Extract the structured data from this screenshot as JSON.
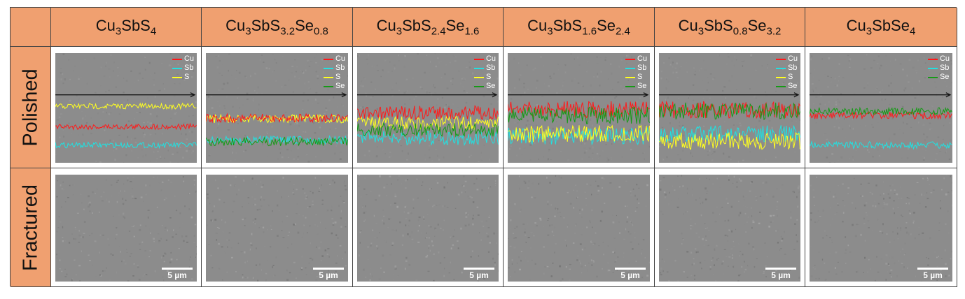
{
  "columns": [
    {
      "formula": "Cu3SbS4",
      "parts": [
        [
          "Cu",
          ""
        ],
        [
          "3",
          "sub"
        ],
        [
          "SbS",
          ""
        ],
        [
          "4",
          "sub"
        ]
      ],
      "legend": [
        "Cu",
        "Sb",
        "S"
      ]
    },
    {
      "formula": "Cu3SbS3.2Se0.8",
      "parts": [
        [
          "Cu",
          ""
        ],
        [
          "3",
          "sub"
        ],
        [
          "SbS",
          ""
        ],
        [
          "3.2",
          "sub"
        ],
        [
          "Se",
          ""
        ],
        [
          "0.8",
          "sub"
        ]
      ],
      "legend": [
        "Cu",
        "Sb",
        "S",
        "Se"
      ]
    },
    {
      "formula": "Cu3SbS2.4Se1.6",
      "parts": [
        [
          "Cu",
          ""
        ],
        [
          "3",
          "sub"
        ],
        [
          "SbS",
          ""
        ],
        [
          "2.4",
          "sub"
        ],
        [
          "Se",
          ""
        ],
        [
          "1.6",
          "sub"
        ]
      ],
      "legend": [
        "Cu",
        "Sb",
        "S",
        "Se"
      ]
    },
    {
      "formula": "Cu3SbS1.6Se2.4",
      "parts": [
        [
          "Cu",
          ""
        ],
        [
          "3",
          "sub"
        ],
        [
          "SbS",
          ""
        ],
        [
          "1.6",
          "sub"
        ],
        [
          "Se",
          ""
        ],
        [
          "2.4",
          "sub"
        ]
      ],
      "legend": [
        "Cu",
        "Sb",
        "S",
        "Se"
      ]
    },
    {
      "formula": "Cu3SbS0.8Se3.2",
      "parts": [
        [
          "Cu",
          ""
        ],
        [
          "3",
          "sub"
        ],
        [
          "SbS",
          ""
        ],
        [
          "0.8",
          "sub"
        ],
        [
          "Se",
          ""
        ],
        [
          "3.2",
          "sub"
        ]
      ],
      "legend": [
        "Cu",
        "Sb",
        "S",
        "Se"
      ]
    },
    {
      "formula": "Cu3SbSe4",
      "parts": [
        [
          "Cu",
          ""
        ],
        [
          "3",
          "sub"
        ],
        [
          "SbSe",
          ""
        ],
        [
          "4",
          "sub"
        ]
      ],
      "legend": [
        "Cu",
        "Sb",
        "Se"
      ]
    }
  ],
  "rows": {
    "polished": "Polished",
    "fractured": "Fractured"
  },
  "scale_bar": "5 µm",
  "element_colors": {
    "Cu": "#ff1a1a",
    "Sb": "#22e0e0",
    "S": "#ffff20",
    "Se": "#169a16"
  },
  "header_color": "#f0a070"
}
